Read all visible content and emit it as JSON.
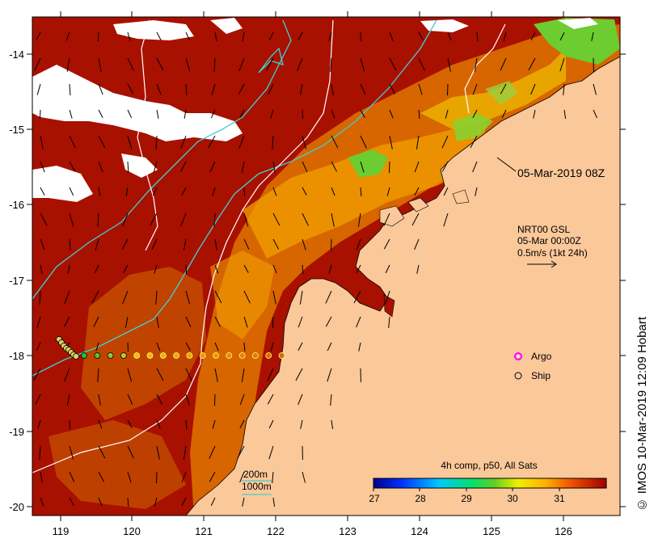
{
  "map": {
    "lon_ticks": [
      "119",
      "120",
      "121",
      "122",
      "123",
      "124",
      "125",
      "126"
    ],
    "lat_ticks": [
      "-14",
      "-15",
      "-16",
      "-17",
      "-18",
      "-19",
      "-20"
    ],
    "date_label": "05-Mar-2019 08Z",
    "current_source": "NRT00 GSL",
    "current_date": "05-Mar 00:00Z",
    "current_scale": "0.5m/s (1kt 24h)",
    "legend_argo": "Argo",
    "legend_ship": "Ship",
    "isobath_200": "200m",
    "isobath_1000": "1000m",
    "colorbar_title": "4h comp, p50, All Sats",
    "colorbar_ticks": [
      "27",
      "28",
      "29",
      "30",
      "31"
    ],
    "credit": "© IMOS 10-Mar-2019 12:09 Hobart",
    "colors": {
      "land": "#fbc89a",
      "sst_hot": "#a81000",
      "sst_warm": "#d96a00",
      "sst_orange": "#f2a000",
      "sst_green": "#6ccc30",
      "isobath_200": "#40d0d0",
      "isobath_1000": "#ffffff",
      "argo": "#ff00ff"
    }
  }
}
